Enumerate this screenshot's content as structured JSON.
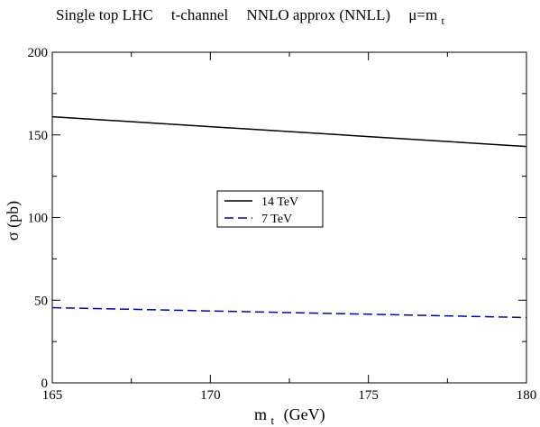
{
  "chart_data": {
    "type": "line",
    "title_parts": [
      "Single top LHC",
      "t-channel",
      "NNLO approx (NNLL)",
      "μ=m",
      "t"
    ],
    "xlabel_main": "m",
    "xlabel_sub": "t",
    "xlabel_unit": "(GeV)",
    "ylabel": "σ (pb)",
    "xlim": [
      165,
      180
    ],
    "ylim": [
      0,
      200
    ],
    "x_ticks": [
      165,
      170,
      175,
      180
    ],
    "y_ticks": [
      0,
      50,
      100,
      150,
      200
    ],
    "legend_placement": "center-left",
    "series": [
      {
        "name": "14 TeV",
        "color": "#000000",
        "dash": "solid",
        "x": [
          165,
          170,
          175,
          180
        ],
        "y": [
          161,
          155,
          149,
          143
        ]
      },
      {
        "name": "7 TeV",
        "color": "#0000cc",
        "dash": "dashed",
        "x": [
          165,
          170,
          175,
          180
        ],
        "y": [
          45.5,
          43.5,
          41.5,
          39.5
        ]
      }
    ]
  }
}
